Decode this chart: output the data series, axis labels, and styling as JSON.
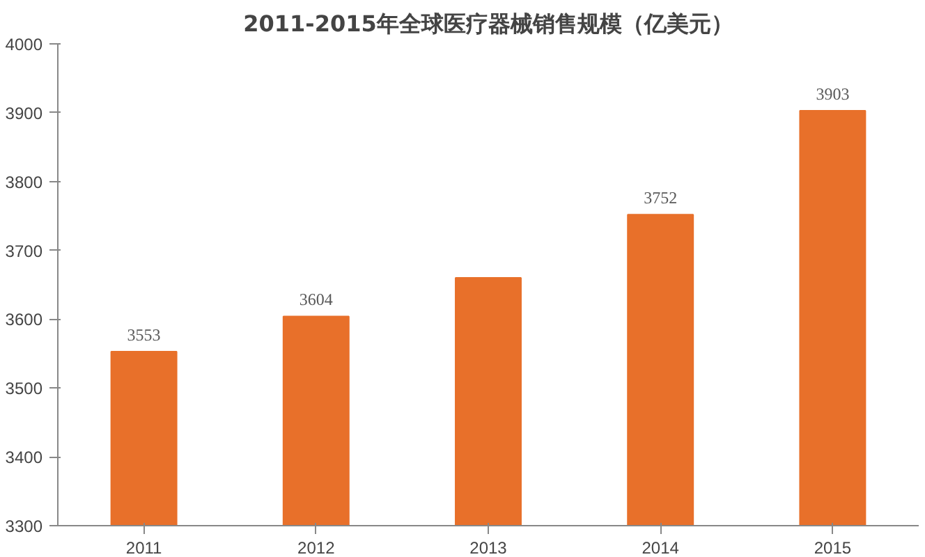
{
  "chart_data": {
    "type": "bar",
    "title": "2011-2015年全球医疗器械销售规模（亿美元）",
    "categories": [
      "2011",
      "2012",
      "2013",
      "2014",
      "2015"
    ],
    "values": [
      3553,
      3604,
      3660,
      3752,
      3903
    ],
    "value_labels": [
      "3553",
      "3604",
      null,
      "3752",
      "3903"
    ],
    "color": "#e8702a",
    "ylim": [
      3300,
      4000
    ],
    "yticks": [
      3300,
      3400,
      3500,
      3600,
      3700,
      3800,
      3900,
      4000
    ],
    "grid": false
  }
}
